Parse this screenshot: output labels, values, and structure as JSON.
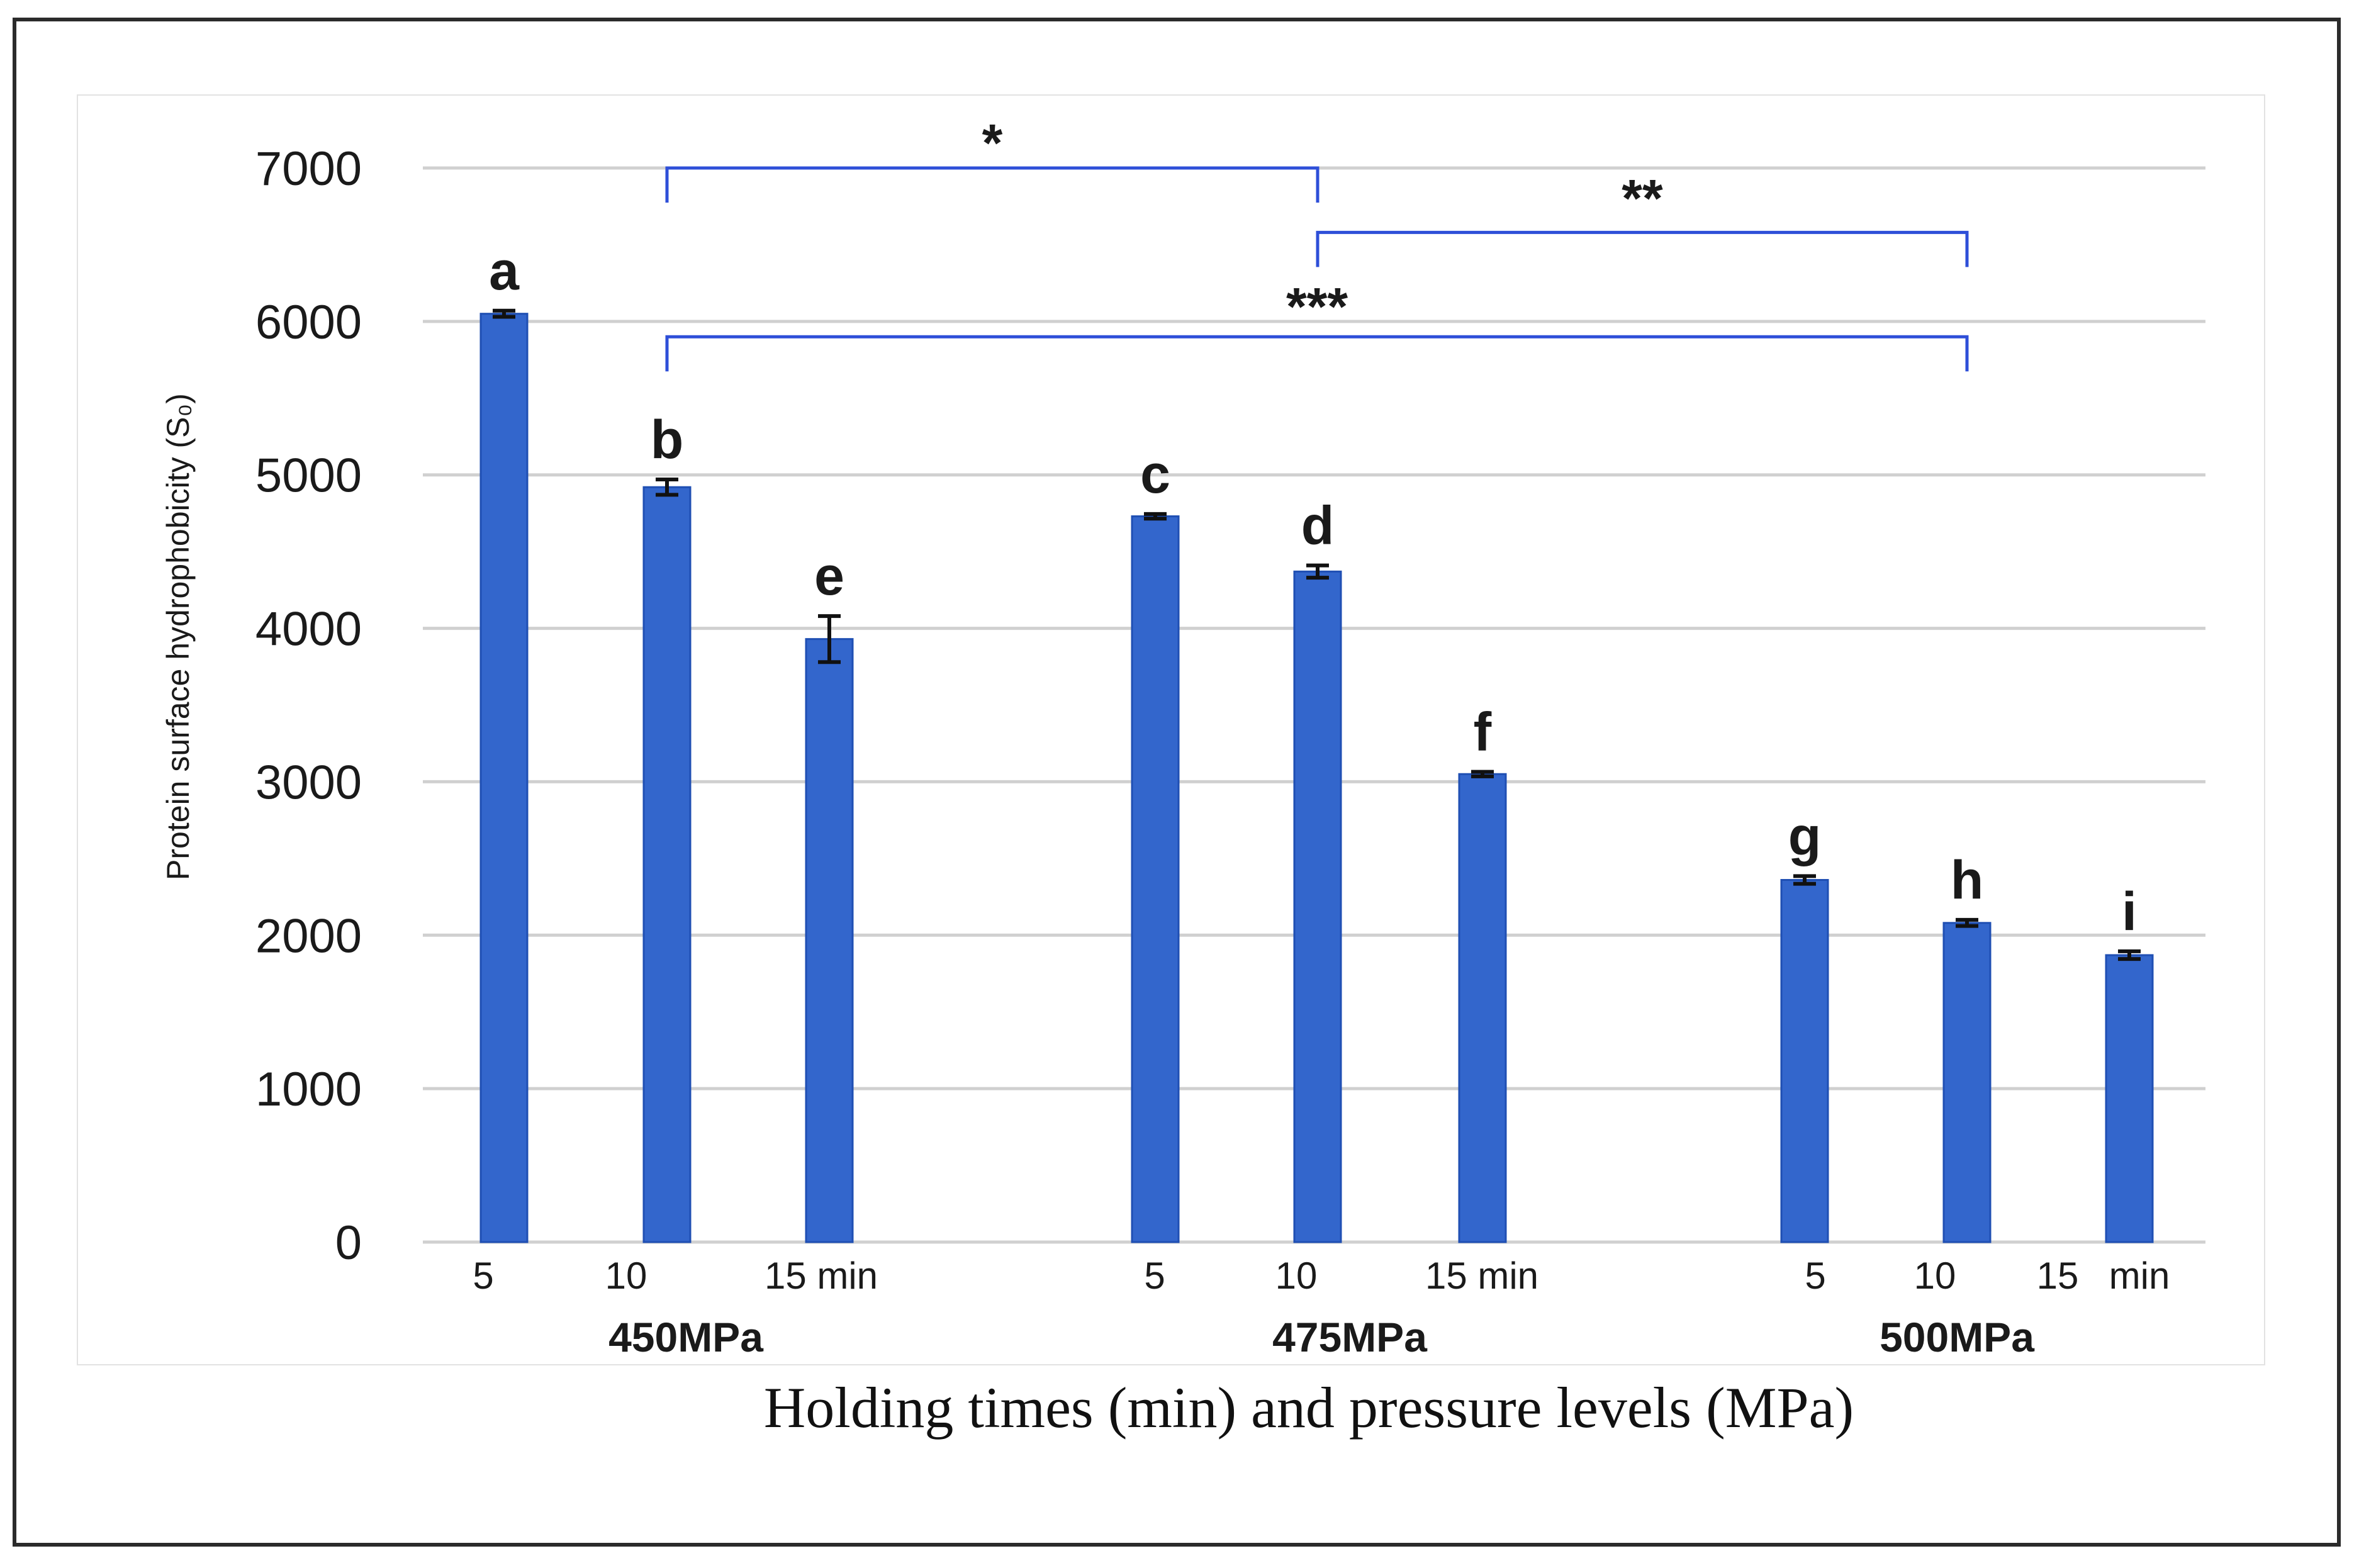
{
  "chart_data": {
    "type": "bar",
    "title": "",
    "xlabel": "Holding times (min) and pressure levels (MPa)",
    "ylabel": "Protein surface hydrophobicity (S₀)",
    "ylim": [
      0,
      7000
    ],
    "yticks": [
      0,
      1000,
      2000,
      3000,
      4000,
      5000,
      6000,
      7000
    ],
    "grid": true,
    "groups": [
      {
        "label": "450MPa",
        "tick_labels": [
          "5",
          "10",
          "15 min"
        ],
        "bars": [
          {
            "time_min": 5,
            "value": 6050,
            "error": 20,
            "letter": "a"
          },
          {
            "time_min": 10,
            "value": 4920,
            "error": 50,
            "letter": "b"
          },
          {
            "time_min": 15,
            "value": 3930,
            "error": 150,
            "letter": "e"
          }
        ]
      },
      {
        "label": "475MPa",
        "tick_labels": [
          "5",
          "10",
          "15 min"
        ],
        "bars": [
          {
            "time_min": 5,
            "value": 4730,
            "error": 15,
            "letter": "c"
          },
          {
            "time_min": 10,
            "value": 4370,
            "error": 40,
            "letter": "d"
          },
          {
            "time_min": 15,
            "value": 3050,
            "error": 15,
            "letter": "f"
          }
        ]
      },
      {
        "label": "500MPa",
        "tick_labels": [
          "5",
          "10",
          "15",
          "min"
        ],
        "bars": [
          {
            "time_min": 5,
            "value": 2360,
            "error": 25,
            "letter": "g"
          },
          {
            "time_min": 10,
            "value": 2080,
            "error": 20,
            "letter": "h"
          },
          {
            "time_min": 15,
            "value": 1870,
            "error": 25,
            "letter": "i"
          }
        ]
      }
    ],
    "significance": [
      {
        "label": "*",
        "from_bar": [
          0,
          1
        ],
        "to_bar": [
          1,
          1
        ],
        "level": 7000
      },
      {
        "label": "**",
        "from_bar": [
          1,
          1
        ],
        "to_bar": [
          2,
          1
        ],
        "level": 6580
      },
      {
        "label": "***",
        "from_bar": [
          0,
          1
        ],
        "to_bar": [
          2,
          1
        ],
        "level": 5900
      }
    ]
  },
  "colors": {
    "bar": "#3366cc",
    "bracket": "#2e4fd8",
    "grid": "#d0d0d0"
  }
}
